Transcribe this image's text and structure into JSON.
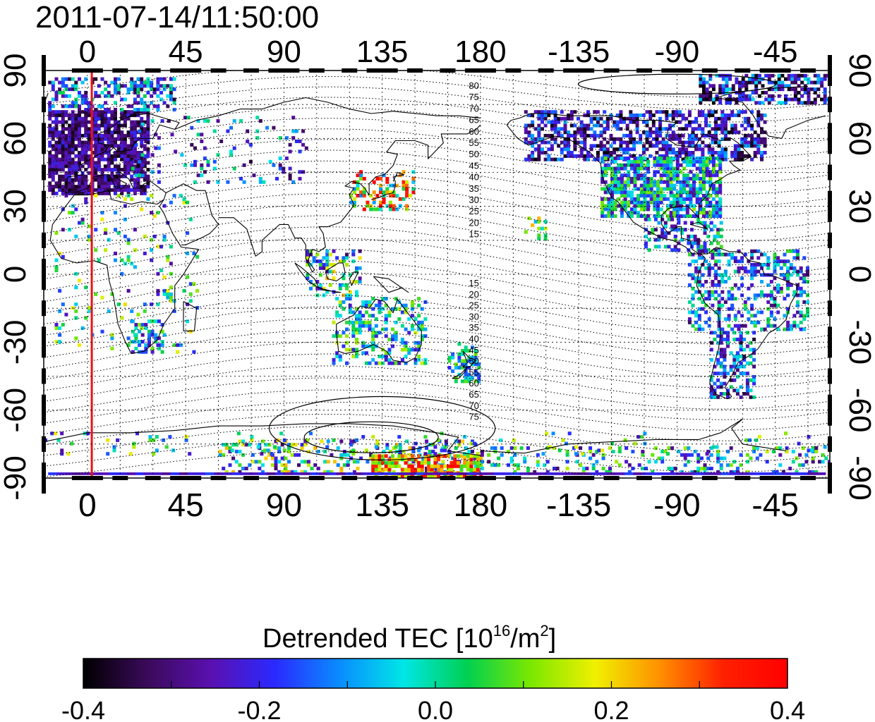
{
  "title": "2011-07-14/11:50:00",
  "map": {
    "projection": "equirectangular",
    "lon_range": [
      -20,
      340
    ],
    "lat_range": [
      -90,
      90
    ],
    "lon_ticks": [
      0,
      45,
      90,
      135,
      180,
      -135,
      -90,
      -45
    ],
    "lat_ticks": [
      90,
      60,
      30,
      0,
      -30,
      -60,
      -90
    ],
    "marker_longitude": 2,
    "marker_color": "#ee1111",
    "magnetic_latitude_labels_north": [
      "80",
      "75",
      "70",
      "65",
      "60",
      "55",
      "50",
      "45",
      "40",
      "35",
      "30",
      "25",
      "20",
      "15"
    ],
    "magnetic_latitude_labels_south": [
      "15",
      "20",
      "25",
      "30",
      "35",
      "40",
      "45",
      "50",
      "55",
      "60",
      "65",
      "70",
      "75"
    ],
    "grid": true
  },
  "colorbar": {
    "label_prefix": "Detrended TEC  [10",
    "label_exp1": "16",
    "label_mid": "/m",
    "label_exp2": "2",
    "label_suffix": "]",
    "min": -0.4,
    "max": 0.4,
    "tick_labels": [
      "-0.4",
      "-0.2",
      "0.0",
      "0.2",
      "0.4"
    ],
    "colors": [
      "#000000",
      "#3a0a5a",
      "#5a10b0",
      "#2a2aff",
      "#0a8cff",
      "#00e6e6",
      "#00d050",
      "#7ce800",
      "#f0f000",
      "#ff9000",
      "#ff2000",
      "#ff0000"
    ]
  }
}
